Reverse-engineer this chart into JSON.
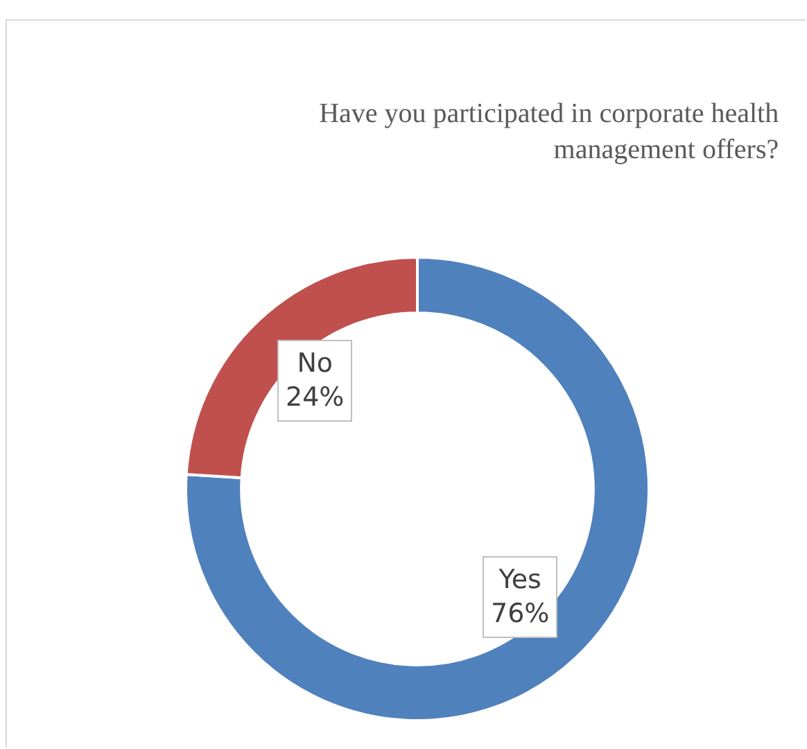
{
  "chart_data": {
    "type": "donut",
    "title": "Have you participated in corporate health management offers?",
    "categories": [
      "Yes",
      "No"
    ],
    "values": [
      76,
      24
    ],
    "colors": [
      "#4f81bd",
      "#c0504d"
    ],
    "value_labels": [
      "76%",
      "24%"
    ],
    "legend": false
  }
}
